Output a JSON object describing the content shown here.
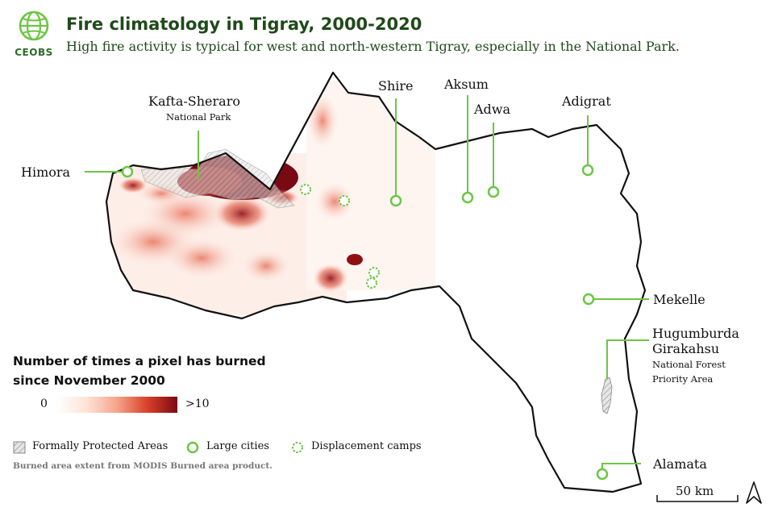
{
  "header": {
    "logo_text": "CEOBS",
    "title": "Fire climatology in Tigray, 2000-2020",
    "subtitle": "High fire activity is typical for west and north-western Tigray, especially in the National Park."
  },
  "places": {
    "kafta_name": "Kafta-Sheraro",
    "kafta_sub": "National Park",
    "himora": "Himora",
    "shire": "Shire",
    "aksum": "Aksum",
    "adwa": "Adwa",
    "adigrat": "Adigrat",
    "mekelle": "Mekelle",
    "hugumburda_line1": "Hugumburda",
    "hugumburda_line2": "Girakahsu",
    "hugumburda_sub1": "National Forest",
    "hugumburda_sub2": "Priority Area",
    "alamata": "Alamata"
  },
  "legend": {
    "title": "Number of times a pixel has burned since November 2000",
    "ramp_min": "0",
    "ramp_max": ">10",
    "ramp_colors": [
      "#ffffff",
      "#fde3d7",
      "#f4a58a",
      "#d9412b",
      "#7a0a12"
    ],
    "protected_label": "Formally Protected Areas",
    "cities_label": "Large cities",
    "camps_label": "Displacement camps"
  },
  "source": "Burned area extent from MODIS Burned area product.",
  "scale_bar": {
    "label": "50 km"
  },
  "colors": {
    "accent_green": "#6cc644",
    "title_green": "#1f4a1a",
    "border": "#111111"
  }
}
